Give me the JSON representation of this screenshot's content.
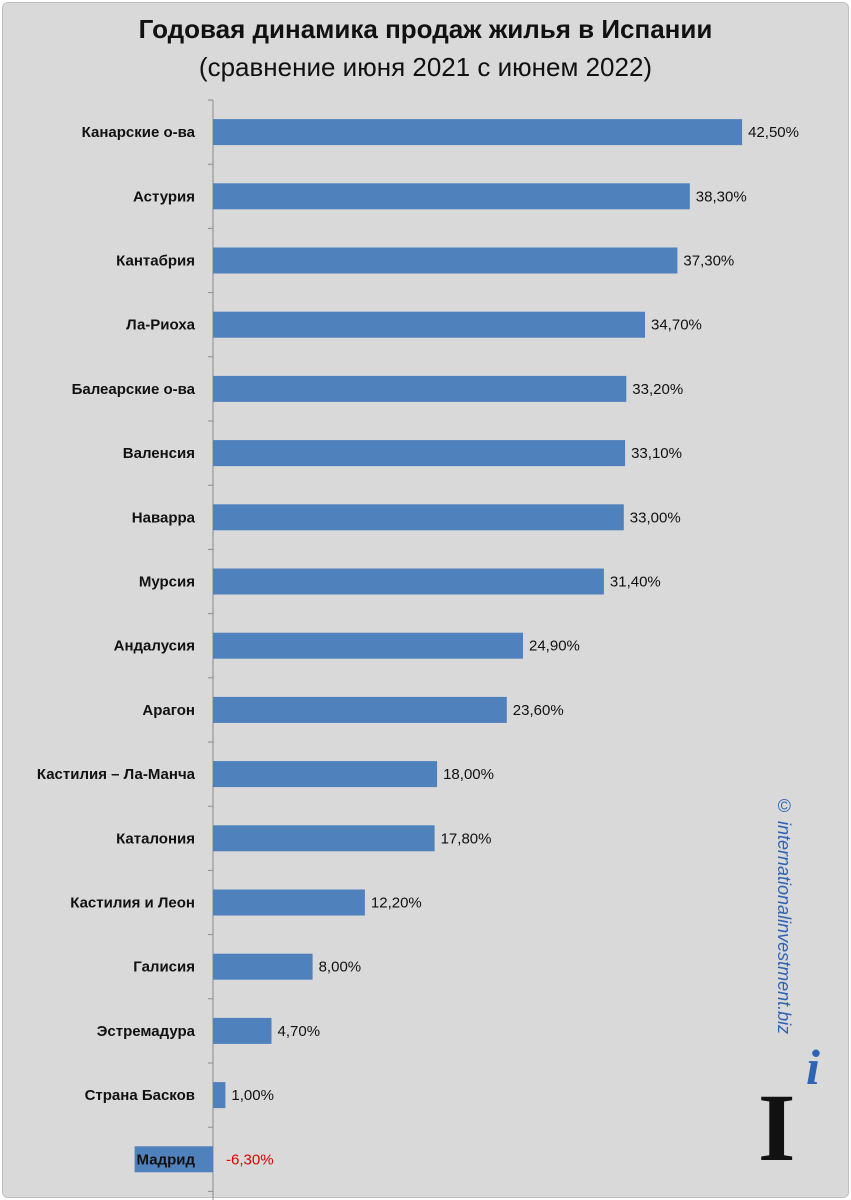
{
  "chart_data": {
    "type": "bar",
    "orientation": "horizontal",
    "title": "Годовая динамика продаж жилья в Испании",
    "subtitle": "(сравнение июня 2021 с июнем 2022)",
    "categories": [
      "Канарские о-ва",
      "Астурия",
      "Кантабрия",
      "Ла-Риоха",
      "Балеарские о-ва",
      "Валенсия",
      "Наварра",
      "Мурсия",
      "Андалусия",
      "Арагон",
      "Кастилия – Ла-Манча",
      "Каталония",
      "Кастилия и Леон",
      "Галисия",
      "Эстремадура",
      "Страна Басков",
      "Мадрид"
    ],
    "values": [
      42.5,
      38.3,
      37.3,
      34.7,
      33.2,
      33.1,
      33.0,
      31.4,
      24.9,
      23.6,
      18.0,
      17.8,
      12.2,
      8.0,
      4.7,
      1.0,
      -6.3
    ],
    "value_labels": [
      "42,50%",
      "38,30%",
      "37,30%",
      "34,70%",
      "33,20%",
      "33,10%",
      "33,00%",
      "31,40%",
      "24,90%",
      "23,60%",
      "18,00%",
      "17,80%",
      "12,20%",
      "8,00%",
      "4,70%",
      "1,00%",
      "-6,30%"
    ],
    "bar_color": "#4f81bd",
    "negative_label_color": "#e00000",
    "grid": false,
    "legend": "none"
  },
  "watermark": "© internationalinvestment.biz",
  "logo": {
    "letter": "I",
    "small_letter": "i"
  }
}
